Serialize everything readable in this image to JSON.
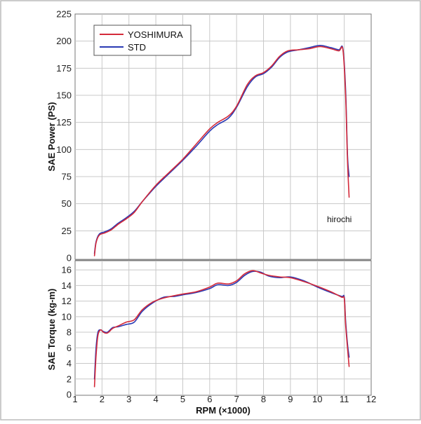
{
  "chart_data": [
    {
      "type": "line",
      "title": "",
      "xlabel": "",
      "ylabel": "SAE Power (PS)",
      "xlim": [
        1,
        12
      ],
      "ylim": [
        0,
        225
      ],
      "yticks": [
        "0",
        "25",
        "50",
        "75",
        "100",
        "125",
        "150",
        "175",
        "200",
        "225"
      ],
      "legend": "top-left",
      "series": [
        {
          "name": "YOSHIMURA",
          "color": "#d42a3a",
          "x": [
            1.72,
            1.78,
            1.9,
            2.1,
            2.35,
            2.6,
            2.9,
            3.2,
            3.5,
            4.0,
            4.5,
            5.0,
            5.5,
            6.0,
            6.3,
            6.7,
            7.0,
            7.4,
            7.7,
            8.0,
            8.3,
            8.6,
            8.9,
            9.3,
            9.7,
            10.1,
            10.5,
            10.8,
            10.95,
            11.05,
            11.12,
            11.18
          ],
          "y": [
            2,
            14,
            21,
            23,
            26,
            31,
            36,
            42,
            52,
            67,
            79,
            91,
            105,
            119,
            125,
            131,
            140,
            160,
            168,
            171,
            177,
            186,
            191,
            192,
            193,
            195,
            193,
            191,
            192,
            150,
            90,
            56
          ]
        },
        {
          "name": "STD",
          "color": "#2a3ab4",
          "x": [
            1.72,
            1.78,
            1.9,
            2.1,
            2.35,
            2.6,
            2.9,
            3.2,
            3.5,
            4.0,
            4.5,
            5.0,
            5.5,
            6.0,
            6.3,
            6.7,
            7.0,
            7.4,
            7.7,
            8.0,
            8.3,
            8.6,
            8.9,
            9.3,
            9.7,
            10.1,
            10.5,
            10.8,
            10.95,
            11.05,
            11.12,
            11.18
          ],
          "y": [
            4,
            15,
            22,
            24,
            27,
            32,
            37,
            43,
            52,
            66,
            78,
            90,
            103,
            117,
            123,
            129,
            139,
            158,
            167,
            170,
            176,
            185,
            190,
            192,
            194,
            196,
            194,
            192,
            193,
            155,
            95,
            75
          ]
        }
      ],
      "annotations": [
        "hirochi"
      ]
    },
    {
      "type": "line",
      "title": "",
      "xlabel": "RPM (×1000)",
      "ylabel": "SAE Torque (kg-m)",
      "xlim": [
        1,
        12
      ],
      "ylim": [
        0,
        17
      ],
      "xticks": [
        "1",
        "2",
        "3",
        "4",
        "5",
        "6",
        "7",
        "8",
        "9",
        "10",
        "11",
        "12"
      ],
      "yticks": [
        "0",
        "2",
        "4",
        "6",
        "8",
        "10",
        "12",
        "14",
        "16"
      ],
      "series": [
        {
          "name": "YOSHIMURA",
          "color": "#d42a3a",
          "x": [
            1.72,
            1.78,
            1.85,
            1.95,
            2.05,
            2.2,
            2.4,
            2.6,
            2.9,
            3.2,
            3.5,
            3.9,
            4.3,
            4.7,
            5.0,
            5.5,
            6.0,
            6.3,
            6.7,
            7.0,
            7.3,
            7.6,
            7.9,
            8.2,
            8.6,
            9.0,
            9.5,
            10.0,
            10.5,
            10.9,
            11.0,
            11.05,
            11.12,
            11.18
          ],
          "y": [
            1,
            5,
            7.6,
            8.3,
            8.0,
            7.9,
            8.5,
            8.8,
            9.3,
            9.6,
            10.9,
            11.9,
            12.4,
            12.7,
            12.9,
            13.2,
            13.8,
            14.3,
            14.2,
            14.6,
            15.5,
            15.9,
            15.6,
            15.3,
            15.1,
            15.0,
            14.5,
            13.9,
            13.2,
            12.5,
            12.3,
            9,
            6,
            3.6
          ]
        },
        {
          "name": "STD",
          "color": "#2a3ab4",
          "x": [
            1.72,
            1.78,
            1.85,
            1.95,
            2.05,
            2.2,
            2.4,
            2.6,
            2.9,
            3.2,
            3.5,
            3.9,
            4.3,
            4.7,
            5.0,
            5.5,
            6.0,
            6.3,
            6.7,
            7.0,
            7.3,
            7.6,
            7.9,
            8.2,
            8.6,
            9.0,
            9.5,
            10.0,
            10.5,
            10.9,
            11.0,
            11.05,
            11.12,
            11.18
          ],
          "y": [
            2,
            6,
            8.0,
            8.3,
            8.1,
            8.0,
            8.6,
            8.7,
            9.0,
            9.3,
            10.7,
            11.8,
            12.5,
            12.6,
            12.8,
            13.1,
            13.6,
            14.1,
            14.0,
            14.4,
            15.3,
            15.8,
            15.7,
            15.2,
            15.0,
            15.1,
            14.6,
            13.8,
            13.1,
            12.6,
            12.5,
            9.5,
            6.5,
            4.8
          ]
        }
      ]
    }
  ]
}
